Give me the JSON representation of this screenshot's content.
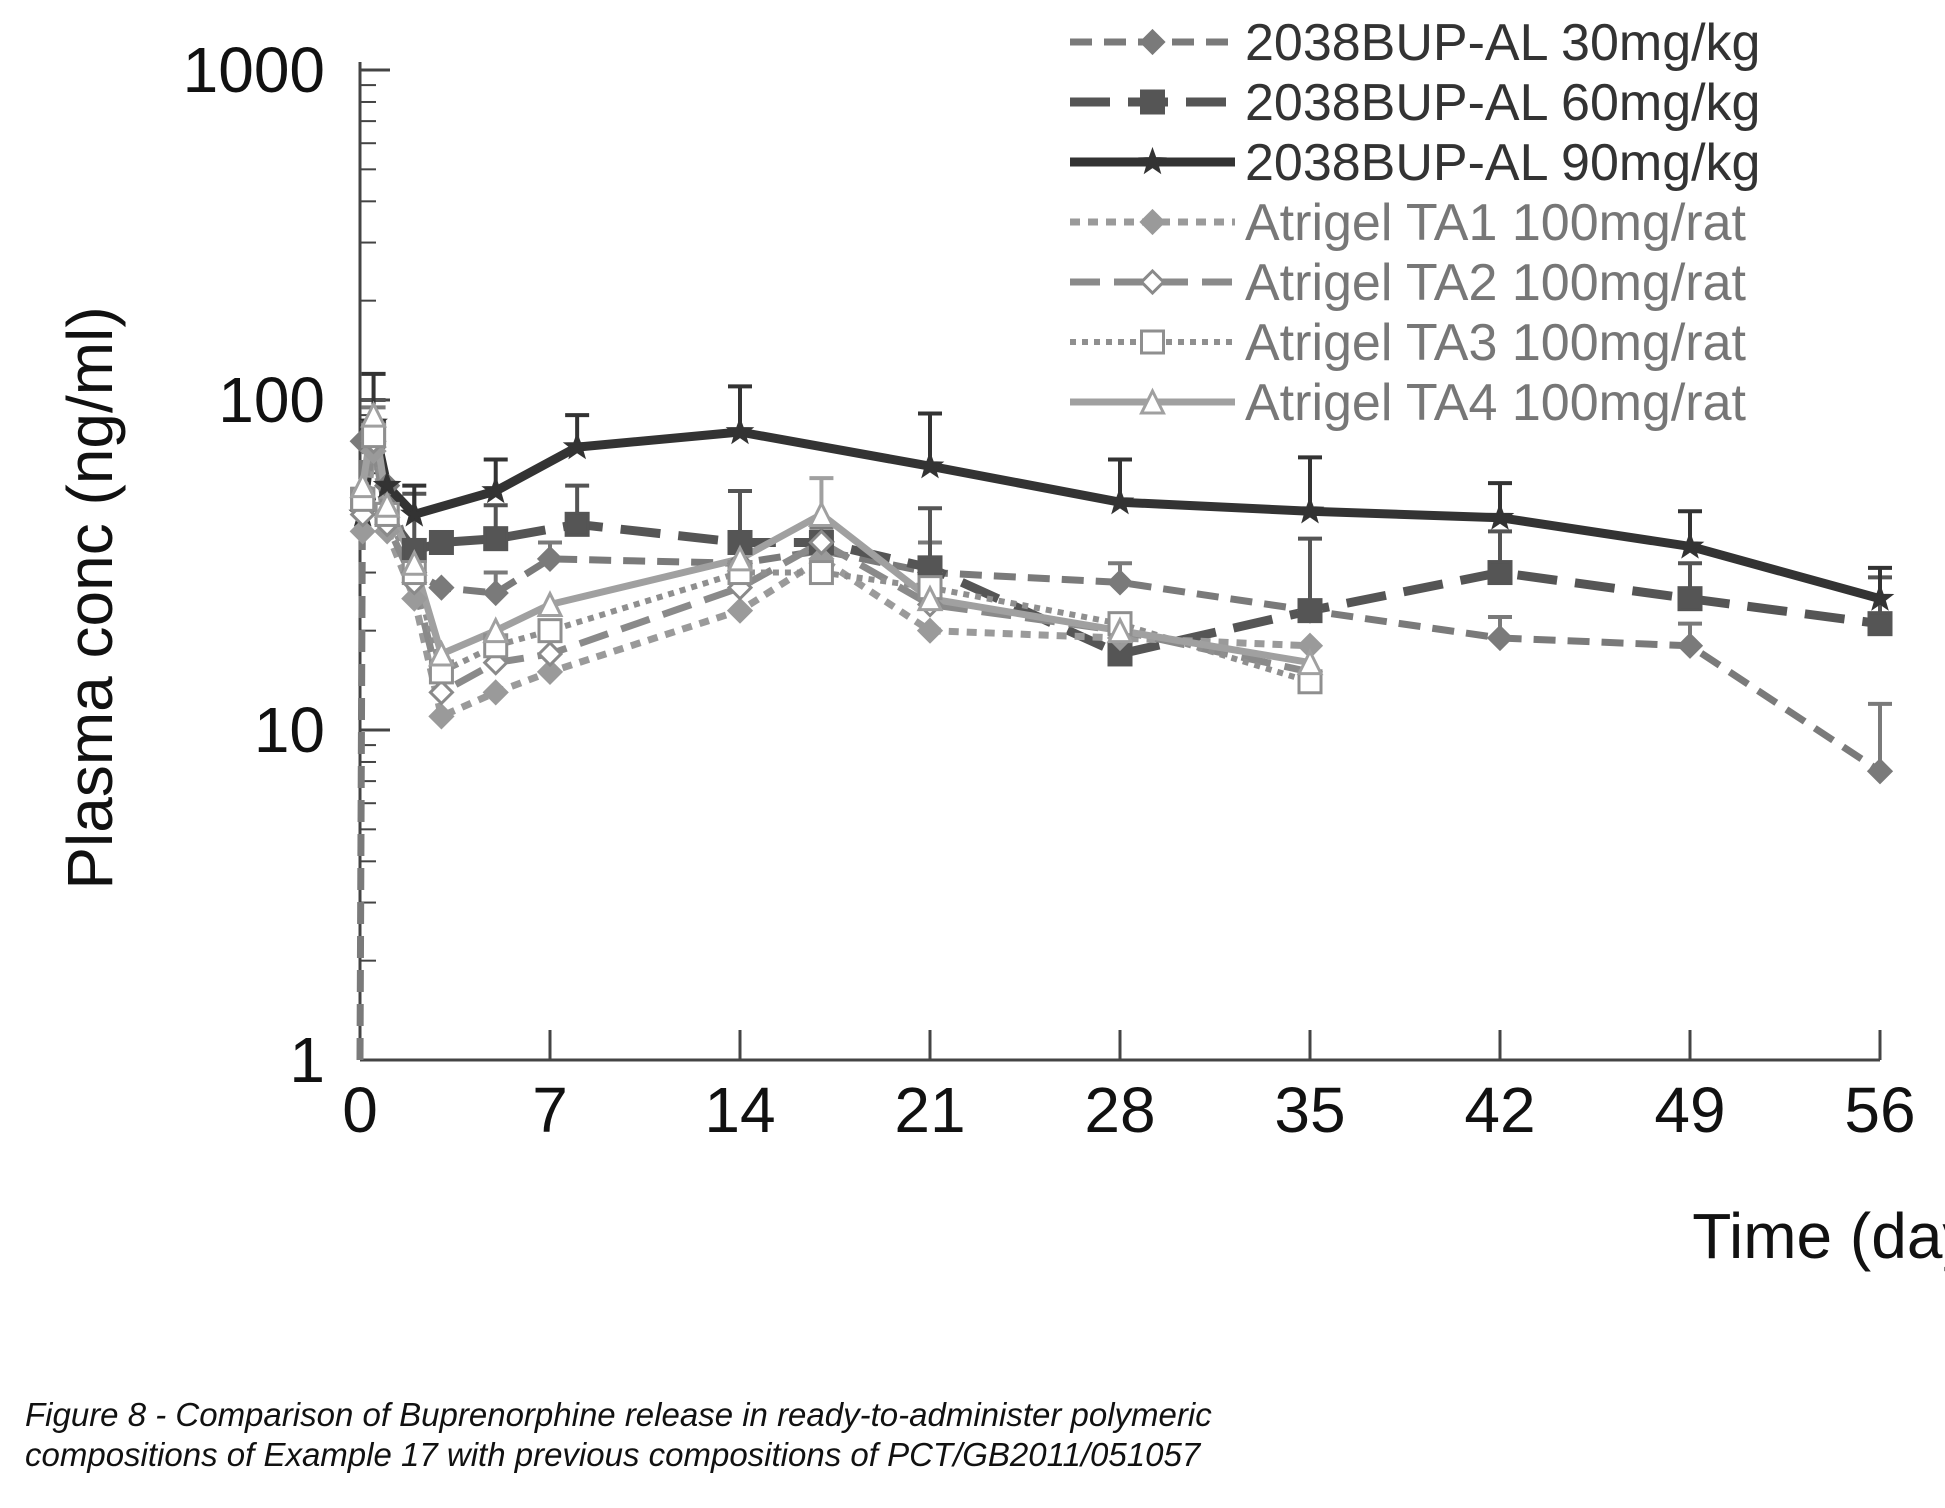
{
  "chart_data": {
    "type": "line",
    "xlabel": "Time (days)",
    "ylabel": "Plasma conc (ng/ml)",
    "xlim": [
      0,
      56
    ],
    "ylim": [
      1,
      1000
    ],
    "y_scale": "log",
    "x_ticks": [
      0,
      7,
      14,
      21,
      28,
      35,
      42,
      49,
      56
    ],
    "y_ticks": [
      1,
      10,
      100,
      1000
    ],
    "legend_position": "top-right",
    "grid": false,
    "series": [
      {
        "name": "2038BUP-AL 30mg/kg",
        "color": "#7a7a7a",
        "width": 7,
        "dash": "22,12",
        "marker": "diamond",
        "marker_fill": "#7a7a7a",
        "points": [
          [
            0,
            1
          ],
          [
            0.1,
            75
          ],
          [
            0.5,
            72
          ],
          [
            1,
            55
          ],
          [
            2,
            30
          ],
          [
            3,
            27
          ],
          [
            5,
            26
          ],
          [
            7,
            33
          ],
          [
            14,
            32
          ],
          [
            17,
            35
          ],
          [
            21,
            30
          ],
          [
            28,
            28
          ],
          [
            35,
            23
          ],
          [
            42,
            19
          ],
          [
            49,
            18
          ],
          [
            56,
            7.5
          ]
        ],
        "error_up": [
          [
            0.5,
            95
          ],
          [
            5,
            30
          ],
          [
            7,
            37
          ],
          [
            14,
            38
          ],
          [
            17,
            41
          ],
          [
            21,
            37
          ],
          [
            28,
            32
          ],
          [
            42,
            22
          ],
          [
            49,
            21
          ],
          [
            56,
            12
          ]
        ]
      },
      {
        "name": "2038BUP-AL 60mg/kg",
        "color": "#555555",
        "width": 9,
        "dash": "40,18",
        "marker": "square",
        "marker_fill": "#555555",
        "points": [
          [
            0.1,
            50
          ],
          [
            0.5,
            80
          ],
          [
            1,
            45
          ],
          [
            2,
            35
          ],
          [
            3,
            37
          ],
          [
            5,
            38
          ],
          [
            8,
            42
          ],
          [
            14,
            37
          ],
          [
            17,
            37
          ],
          [
            21,
            31
          ],
          [
            28,
            17
          ],
          [
            35,
            23
          ],
          [
            42,
            30
          ],
          [
            49,
            25
          ],
          [
            56,
            21
          ]
        ],
        "error_up": [
          [
            0.5,
            100
          ],
          [
            2,
            52
          ],
          [
            5,
            48
          ],
          [
            8,
            55
          ],
          [
            14,
            53
          ],
          [
            21,
            47
          ],
          [
            35,
            38
          ],
          [
            42,
            40
          ],
          [
            49,
            32
          ],
          [
            56,
            29
          ]
        ]
      },
      {
        "name": "2038BUP-AL 90mg/kg",
        "color": "#333333",
        "width": 9,
        "dash": "",
        "marker": "star",
        "marker_fill": "#333333",
        "points": [
          [
            0.1,
            45
          ],
          [
            0.5,
            85
          ],
          [
            1,
            55
          ],
          [
            2,
            45
          ],
          [
            5,
            53
          ],
          [
            8,
            72
          ],
          [
            14,
            80
          ],
          [
            21,
            63
          ],
          [
            28,
            49
          ],
          [
            35,
            46
          ],
          [
            42,
            44
          ],
          [
            49,
            36
          ],
          [
            56,
            25
          ]
        ],
        "error_up": [
          [
            0.5,
            120
          ],
          [
            2,
            55
          ],
          [
            5,
            66
          ],
          [
            8,
            90
          ],
          [
            14,
            110
          ],
          [
            21,
            91
          ],
          [
            28,
            66
          ],
          [
            35,
            67
          ],
          [
            42,
            56
          ],
          [
            49,
            46
          ],
          [
            56,
            31
          ]
        ]
      },
      {
        "name": "Atrigel TA1 100mg/rat",
        "color": "#9a9a9a",
        "width": 7,
        "dash": "10,8",
        "marker": "diamond",
        "marker_fill": "#9a9a9a",
        "points": [
          [
            0.1,
            40
          ],
          [
            0.5,
            70
          ],
          [
            1,
            40
          ],
          [
            2,
            25
          ],
          [
            3,
            11
          ],
          [
            5,
            13
          ],
          [
            7,
            15
          ],
          [
            14,
            23
          ],
          [
            17,
            33
          ],
          [
            21,
            20
          ],
          [
            28,
            19
          ],
          [
            35,
            18
          ]
        ]
      },
      {
        "name": "Atrigel TA2 100mg/rat",
        "color": "#8a8a8a",
        "width": 7,
        "dash": "30,14",
        "marker": "diamond-open",
        "marker_fill": "#ffffff",
        "points": [
          [
            0.1,
            45
          ],
          [
            0.5,
            75
          ],
          [
            1,
            42
          ],
          [
            2,
            28
          ],
          [
            3,
            13
          ],
          [
            5,
            16
          ],
          [
            7,
            17
          ],
          [
            14,
            27
          ],
          [
            17,
            37
          ],
          [
            21,
            24
          ],
          [
            28,
            20
          ],
          [
            35,
            15
          ]
        ]
      },
      {
        "name": "Atrigel TA3 100mg/rat",
        "color": "#8f8f8f",
        "width": 6,
        "dash": "6,6",
        "marker": "square-open",
        "marker_fill": "#ffffff",
        "points": [
          [
            0.1,
            50
          ],
          [
            0.5,
            78
          ],
          [
            1,
            45
          ],
          [
            2,
            30
          ],
          [
            3,
            15
          ],
          [
            5,
            18
          ],
          [
            7,
            20
          ],
          [
            14,
            30
          ],
          [
            17,
            30
          ],
          [
            21,
            27
          ],
          [
            28,
            21
          ],
          [
            35,
            14
          ]
        ]
      },
      {
        "name": "Atrigel TA4 100mg/rat",
        "color": "#a0a0a0",
        "width": 7,
        "dash": "",
        "marker": "triangle-open",
        "marker_fill": "#ffffff",
        "points": [
          [
            0.1,
            55
          ],
          [
            0.5,
            90
          ],
          [
            1,
            48
          ],
          [
            2,
            32
          ],
          [
            3,
            17
          ],
          [
            5,
            20
          ],
          [
            7,
            24
          ],
          [
            14,
            33
          ],
          [
            17,
            45
          ],
          [
            21,
            25
          ],
          [
            28,
            20
          ],
          [
            35,
            16
          ]
        ],
        "error_up": [
          [
            17,
            58
          ]
        ]
      }
    ]
  },
  "caption": {
    "line1": "Figure 8 - Comparison  of Buprenorphine release in ready-to-administer polymeric",
    "line2": "compositions of Example 17 with previous  compositions of PCT/GB2011/051057"
  }
}
